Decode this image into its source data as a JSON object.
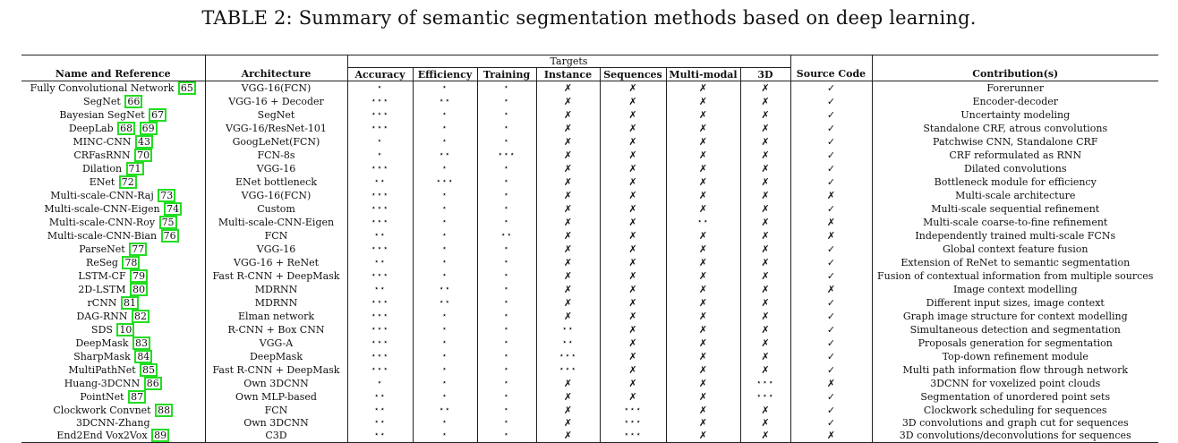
{
  "caption": "TABLE 2: Summary of semantic segmentation methods based on deep learning.",
  "headers": {
    "group": "Targets",
    "name": "Name and Reference",
    "architecture": "Architecture",
    "targets": [
      "Accuracy",
      "Efficiency",
      "Training",
      "Instance",
      "Sequences",
      "Multi-modal",
      "3D"
    ],
    "source": "Source Code",
    "contribution": "Contribution(s)"
  },
  "rows": [
    {
      "name": "Fully Convolutional Network",
      "ref": "65",
      "arch": "VGG-16(FCN)",
      "acc": "⋆",
      "eff": "⋆",
      "train": "⋆",
      "inst": "✗",
      "seq": "✗",
      "mm": "✗",
      "d3": "✗",
      "src": "✓",
      "contrib": "Forerunner"
    },
    {
      "name": "SegNet",
      "ref": "66",
      "arch": "VGG-16 + Decoder",
      "acc": "⋆⋆⋆",
      "eff": "⋆⋆",
      "train": "⋆",
      "inst": "✗",
      "seq": "✗",
      "mm": "✗",
      "d3": "✗",
      "src": "✓",
      "contrib": "Encoder-decoder"
    },
    {
      "name": "Bayesian SegNet",
      "ref": "67",
      "arch": "SegNet",
      "acc": "⋆⋆⋆",
      "eff": "⋆",
      "train": "⋆",
      "inst": "✗",
      "seq": "✗",
      "mm": "✗",
      "d3": "✗",
      "src": "✓",
      "contrib": "Uncertainty modeling"
    },
    {
      "name": "DeepLab",
      "ref": "68",
      "ref2": "69",
      "arch": "VGG-16/ResNet-101",
      "acc": "⋆⋆⋆",
      "eff": "⋆",
      "train": "⋆",
      "inst": "✗",
      "seq": "✗",
      "mm": "✗",
      "d3": "✗",
      "src": "✓",
      "contrib": "Standalone CRF, atrous convolutions"
    },
    {
      "name": "MINC-CNN",
      "ref": "43",
      "arch": "GoogLeNet(FCN)",
      "acc": "⋆",
      "eff": "⋆",
      "train": "⋆",
      "inst": "✗",
      "seq": "✗",
      "mm": "✗",
      "d3": "✗",
      "src": "✓",
      "contrib": "Patchwise CNN, Standalone CRF"
    },
    {
      "name": "CRFasRNN",
      "ref": "70",
      "arch": "FCN-8s",
      "acc": "⋆",
      "eff": "⋆⋆",
      "train": "⋆⋆⋆",
      "inst": "✗",
      "seq": "✗",
      "mm": "✗",
      "d3": "✗",
      "src": "✓",
      "contrib": "CRF reformulated as RNN"
    },
    {
      "name": "Dilation",
      "ref": "71",
      "arch": "VGG-16",
      "acc": "⋆⋆⋆",
      "eff": "⋆",
      "train": "⋆",
      "inst": "✗",
      "seq": "✗",
      "mm": "✗",
      "d3": "✗",
      "src": "✓",
      "contrib": "Dilated convolutions"
    },
    {
      "name": "ENet",
      "ref": "72",
      "arch": "ENet bottleneck",
      "acc": "⋆⋆",
      "eff": "⋆⋆⋆",
      "train": "⋆",
      "inst": "✗",
      "seq": "✗",
      "mm": "✗",
      "d3": "✗",
      "src": "✓",
      "contrib": "Bottleneck module for efficiency"
    },
    {
      "name": "Multi-scale-CNN-Raj",
      "ref": "73",
      "arch": "VGG-16(FCN)",
      "acc": "⋆⋆⋆",
      "eff": "⋆",
      "train": "⋆",
      "inst": "✗",
      "seq": "✗",
      "mm": "✗",
      "d3": "✗",
      "src": "✗",
      "contrib": "Multi-scale architecture"
    },
    {
      "name": "Multi-scale-CNN-Eigen",
      "ref": "74",
      "arch": "Custom",
      "acc": "⋆⋆⋆",
      "eff": "⋆",
      "train": "⋆",
      "inst": "✗",
      "seq": "✗",
      "mm": "✗",
      "d3": "✗",
      "src": "✓",
      "contrib": "Multi-scale sequential refinement"
    },
    {
      "name": "Multi-scale-CNN-Roy",
      "ref": "75",
      "arch": "Multi-scale-CNN-Eigen",
      "acc": "⋆⋆⋆",
      "eff": "⋆",
      "train": "⋆",
      "inst": "✗",
      "seq": "✗",
      "mm": "⋆⋆",
      "d3": "✗",
      "src": "✗",
      "contrib": "Multi-scale coarse-to-fine refinement"
    },
    {
      "name": "Multi-scale-CNN-Bian",
      "ref": "76",
      "arch": "FCN",
      "acc": "⋆⋆",
      "eff": "⋆",
      "train": "⋆⋆",
      "inst": "✗",
      "seq": "✗",
      "mm": "✗",
      "d3": "✗",
      "src": "✗",
      "contrib": "Independently trained multi-scale FCNs"
    },
    {
      "name": "ParseNet",
      "ref": "77",
      "arch": "VGG-16",
      "acc": "⋆⋆⋆",
      "eff": "⋆",
      "train": "⋆",
      "inst": "✗",
      "seq": "✗",
      "mm": "✗",
      "d3": "✗",
      "src": "✓",
      "contrib": "Global context feature fusion"
    },
    {
      "name": "ReSeg",
      "ref": "78",
      "arch": "VGG-16 + ReNet",
      "acc": "⋆⋆",
      "eff": "⋆",
      "train": "⋆",
      "inst": "✗",
      "seq": "✗",
      "mm": "✗",
      "d3": "✗",
      "src": "✓",
      "contrib": "Extension of ReNet to semantic segmentation"
    },
    {
      "name": "LSTM-CF",
      "ref": "79",
      "arch": "Fast R-CNN + DeepMask",
      "acc": "⋆⋆⋆",
      "eff": "⋆",
      "train": "⋆",
      "inst": "✗",
      "seq": "✗",
      "mm": "✗",
      "d3": "✗",
      "src": "✓",
      "contrib": "Fusion of contextual information from multiple sources"
    },
    {
      "name": "2D-LSTM",
      "ref": "80",
      "arch": "MDRNN",
      "acc": "⋆⋆",
      "eff": "⋆⋆",
      "train": "⋆",
      "inst": "✗",
      "seq": "✗",
      "mm": "✗",
      "d3": "✗",
      "src": "✗",
      "contrib": "Image context modelling"
    },
    {
      "name": "rCNN",
      "ref": "81",
      "arch": "MDRNN",
      "acc": "⋆⋆⋆",
      "eff": "⋆⋆",
      "train": "⋆",
      "inst": "✗",
      "seq": "✗",
      "mm": "✗",
      "d3": "✗",
      "src": "✓",
      "contrib": "Different input sizes, image context"
    },
    {
      "name": "DAG-RNN",
      "ref": "82",
      "arch": "Elman network",
      "acc": "⋆⋆⋆",
      "eff": "⋆",
      "train": "⋆",
      "inst": "✗",
      "seq": "✗",
      "mm": "✗",
      "d3": "✗",
      "src": "✓",
      "contrib": "Graph image structure for context modelling"
    },
    {
      "name": "SDS",
      "ref": "10",
      "arch": "R-CNN + Box CNN",
      "acc": "⋆⋆⋆",
      "eff": "⋆",
      "train": "⋆",
      "inst": "⋆⋆",
      "seq": "✗",
      "mm": "✗",
      "d3": "✗",
      "src": "✓",
      "contrib": "Simultaneous detection and segmentation"
    },
    {
      "name": "DeepMask",
      "ref": "83",
      "arch": "VGG-A",
      "acc": "⋆⋆⋆",
      "eff": "⋆",
      "train": "⋆",
      "inst": "⋆⋆",
      "seq": "✗",
      "mm": "✗",
      "d3": "✗",
      "src": "✓",
      "contrib": "Proposals generation for segmentation"
    },
    {
      "name": "SharpMask",
      "ref": "84",
      "arch": "DeepMask",
      "acc": "⋆⋆⋆",
      "eff": "⋆",
      "train": "⋆",
      "inst": "⋆⋆⋆",
      "seq": "✗",
      "mm": "✗",
      "d3": "✗",
      "src": "✓",
      "contrib": "Top-down refinement module"
    },
    {
      "name": "MultiPathNet",
      "ref": "85",
      "arch": "Fast R-CNN + DeepMask",
      "acc": "⋆⋆⋆",
      "eff": "⋆",
      "train": "⋆",
      "inst": "⋆⋆⋆",
      "seq": "✗",
      "mm": "✗",
      "d3": "✗",
      "src": "✓",
      "contrib": "Multi path information flow through network"
    },
    {
      "name": "Huang-3DCNN",
      "ref": "86",
      "arch": "Own 3DCNN",
      "acc": "⋆",
      "eff": "⋆",
      "train": "⋆",
      "inst": "✗",
      "seq": "✗",
      "mm": "✗",
      "d3": "⋆⋆⋆",
      "src": "✗",
      "contrib": "3DCNN for voxelized point clouds"
    },
    {
      "name": "PointNet",
      "ref": "87",
      "arch": "Own MLP-based",
      "acc": "⋆⋆",
      "eff": "⋆",
      "train": "⋆",
      "inst": "✗",
      "seq": "✗",
      "mm": "✗",
      "d3": "⋆⋆⋆",
      "src": "✓",
      "contrib": "Segmentation of unordered point sets"
    },
    {
      "name": "Clockwork Convnet",
      "ref": "88",
      "arch": "FCN",
      "acc": "⋆⋆",
      "eff": "⋆⋆",
      "train": "⋆",
      "inst": "✗",
      "seq": "⋆⋆⋆",
      "mm": "✗",
      "d3": "✗",
      "src": "✓",
      "contrib": "Clockwork scheduling for sequences"
    },
    {
      "name": "3DCNN-Zhang",
      "ref": "",
      "arch": "Own 3DCNN",
      "acc": "⋆⋆",
      "eff": "⋆",
      "train": "⋆",
      "inst": "✗",
      "seq": "⋆⋆⋆",
      "mm": "✗",
      "d3": "✗",
      "src": "✓",
      "contrib": "3D convolutions and graph cut for sequences"
    },
    {
      "name": "End2End Vox2Vox",
      "ref": "89",
      "arch": "C3D",
      "acc": "⋆⋆",
      "eff": "⋆",
      "train": "⋆",
      "inst": "✗",
      "seq": "⋆⋆⋆",
      "mm": "✗",
      "d3": "✗",
      "src": "✗",
      "contrib": "3D convolutions/deconvolutions for sequences"
    }
  ]
}
